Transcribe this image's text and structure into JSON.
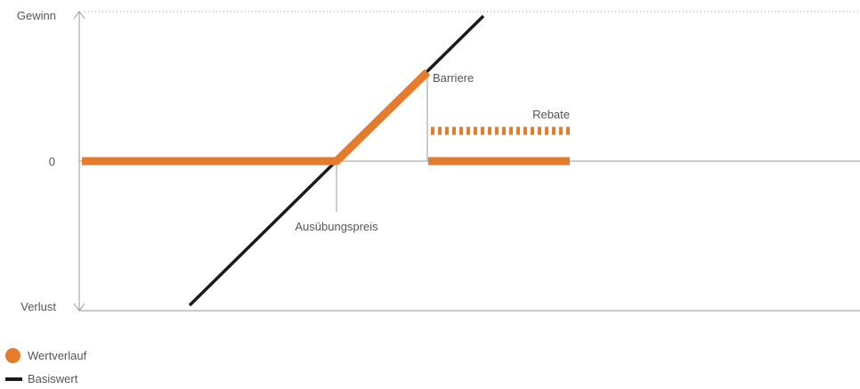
{
  "chart_data": {
    "type": "line",
    "title": "",
    "y_axis": {
      "top_label": "Gewinn",
      "bottom_label": "Verlust",
      "zero_label": "0"
    },
    "annotations": {
      "strike": "Ausübungspreis",
      "barrier": "Barriere",
      "rebate": "Rebate"
    },
    "series": [
      {
        "name": "Wertverlauf",
        "color": "#e57b2d",
        "style": "thick"
      },
      {
        "name": "Basiswert",
        "color": "#1a1a1a",
        "style": "thin"
      }
    ],
    "grid": false
  },
  "legend": [
    {
      "label": "Wertverlauf",
      "marker": "circle",
      "color": "#e57b2d"
    },
    {
      "label": "Basiswert",
      "marker": "bar",
      "color": "#1a1a1a"
    }
  ]
}
